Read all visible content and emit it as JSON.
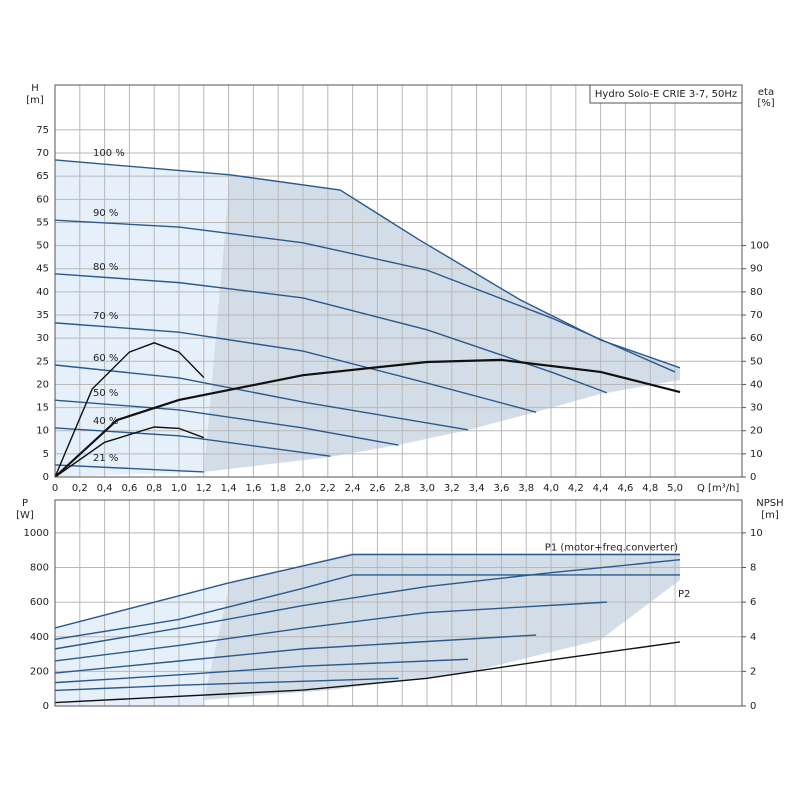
{
  "chart_data": [
    {
      "type": "line",
      "title": "Hydro Solo-E CRIE 3-7, 50Hz",
      "ylabel": "H",
      "yunit": "[m]",
      "y2label": "eta",
      "y2unit": "[%]",
      "xlabel": "Q [m³/h]",
      "xlim": [
        0,
        5.54
      ],
      "ylim": [
        0,
        84.7
      ],
      "y2lim": [
        0,
        169.4
      ],
      "xticks": [
        0,
        {
          "value": 0.2,
          "label": "0,2"
        },
        {
          "value": 0.4,
          "label": "0,4"
        },
        {
          "value": 0.6,
          "label": "0,6"
        },
        {
          "value": 0.8,
          "label": "0,8"
        },
        {
          "value": 1.0,
          "label": "1,0"
        },
        {
          "value": 1.2,
          "label": "1,2"
        },
        {
          "value": 1.4,
          "label": "1,4"
        },
        {
          "value": 1.6,
          "label": "1,6"
        },
        {
          "value": 1.8,
          "label": "1,8"
        },
        {
          "value": 2.0,
          "label": "2,0"
        },
        {
          "value": 2.2,
          "label": "2,2"
        },
        {
          "value": 2.4,
          "label": "2,4"
        },
        {
          "value": 2.6,
          "label": "2,6"
        },
        {
          "value": 2.8,
          "label": "2,8"
        },
        {
          "value": 3.0,
          "label": "3,0"
        },
        {
          "value": 3.2,
          "label": "3,2"
        },
        {
          "value": 3.4,
          "label": "3,4"
        },
        {
          "value": 3.6,
          "label": "3,6"
        },
        {
          "value": 3.8,
          "label": "3,8"
        },
        {
          "value": 4.0,
          "label": "4,0"
        },
        {
          "value": 4.2,
          "label": "4,2"
        },
        {
          "value": 4.4,
          "label": "4,4"
        },
        {
          "value": 4.6,
          "label": "4,6"
        },
        {
          "value": 4.8,
          "label": "4,8"
        },
        {
          "value": 5.0,
          "label": "5,0"
        }
      ],
      "yticks": [
        0,
        5,
        10,
        15,
        20,
        25,
        30,
        35,
        40,
        45,
        50,
        55,
        60,
        65,
        70,
        75
      ],
      "y2ticks": [
        0,
        10,
        20,
        30,
        40,
        50,
        60,
        70,
        80,
        90,
        100
      ],
      "grid": true,
      "series": [
        {
          "name": "100 %",
          "color": "#2a5a8c",
          "x": [
            0,
            1.41,
            2.3,
            2.94,
            3.75,
            4.4,
            5.04
          ],
          "values": [
            68.5,
            65.3,
            62,
            51.2,
            38.3,
            29.6,
            23.6
          ]
        },
        {
          "name": "90 %",
          "color": "#2a5a8c",
          "x": [
            0,
            1,
            2,
            3,
            4,
            5.0
          ],
          "values": [
            55.5,
            54,
            50.6,
            44.7,
            34.4,
            22.7
          ]
        },
        {
          "name": "80 %",
          "color": "#2a5a8c",
          "x": [
            0,
            1,
            2,
            3,
            4,
            4.45
          ],
          "values": [
            43.9,
            42,
            38.7,
            31.8,
            22.7,
            18.2
          ]
        },
        {
          "name": "70 %",
          "color": "#2a5a8c",
          "x": [
            0,
            1,
            2,
            3,
            3.88
          ],
          "values": [
            33.3,
            31.3,
            27.2,
            20.3,
            14
          ]
        },
        {
          "name": "60 %",
          "color": "#2a5a8c",
          "x": [
            0,
            1,
            2,
            3.33
          ],
          "values": [
            24.2,
            21.4,
            16.2,
            10.2
          ]
        },
        {
          "name": "50 %",
          "color": "#2a5a8c",
          "x": [
            0,
            1,
            2,
            2.77
          ],
          "values": [
            16.6,
            14.5,
            10.6,
            6.9
          ]
        },
        {
          "name": "40 %",
          "color": "#2a5a8c",
          "x": [
            0,
            1,
            2.22
          ],
          "values": [
            10.6,
            8.9,
            4.5
          ]
        },
        {
          "name": "21 %",
          "color": "#2a5a8c",
          "x": [
            0,
            1.2
          ],
          "values": [
            2.6,
            1.1
          ]
        },
        {
          "color": "#111111",
          "axis": "y2",
          "x": [
            0,
            0.5,
            1,
            2,
            3,
            3.6,
            4.4,
            5.04
          ],
          "values": [
            0,
            24.6,
            33.3,
            44,
            49.7,
            50.6,
            45.4,
            36.7
          ]
        },
        {
          "color": "#111111",
          "axis": "y2",
          "x": [
            0,
            0.3,
            0.6,
            0.8,
            1.0,
            1.2
          ],
          "values": [
            0,
            38,
            54,
            58,
            54,
            43
          ]
        },
        {
          "color": "#111111",
          "axis": "y2",
          "x": [
            0,
            0.4,
            0.8,
            1.0,
            1.2
          ],
          "values": [
            0,
            15,
            21.6,
            21,
            17
          ]
        }
      ]
    },
    {
      "type": "line",
      "ylabel": "P",
      "yunit": "[W]",
      "y2label": "NPSH",
      "y2unit": "[m]",
      "xlim": [
        0,
        5.54
      ],
      "ylim": [
        0,
        1190
      ],
      "y2lim": [
        0,
        11.9
      ],
      "yticks": [
        0,
        200,
        400,
        600,
        800,
        1000
      ],
      "y2ticks": [
        0,
        2,
        4,
        6,
        8,
        10
      ],
      "grid": true,
      "series": [
        {
          "name": "P1 (motor+freq.converter)",
          "color": "#2a5a8c",
          "x": [
            0,
            1.4,
            2.4,
            5.04
          ],
          "values": [
            451,
            711,
            875,
            875
          ]
        },
        {
          "name": "P2",
          "color": "#2a5a8c",
          "x": [
            0,
            1,
            2,
            2.4,
            5.04
          ],
          "values": [
            385,
            500,
            680,
            757,
            757
          ]
        },
        {
          "color": "#2a5a8c",
          "x": [
            0,
            1,
            2,
            3,
            4,
            5.04
          ],
          "values": [
            330,
            450,
            580,
            690,
            770,
            845
          ]
        },
        {
          "color": "#2a5a8c",
          "x": [
            0,
            1,
            2,
            3,
            4.45
          ],
          "values": [
            260,
            350,
            450,
            540,
            600
          ]
        },
        {
          "color": "#2a5a8c",
          "x": [
            0,
            1,
            2,
            3.88
          ],
          "values": [
            190,
            260,
            330,
            410
          ]
        },
        {
          "color": "#2a5a8c",
          "x": [
            0,
            1,
            2,
            3.33
          ],
          "values": [
            135,
            180,
            230,
            270
          ]
        },
        {
          "color": "#2a5a8c",
          "x": [
            0,
            1,
            2.77
          ],
          "values": [
            90,
            120,
            160
          ]
        },
        {
          "color": "#111111",
          "axis": "y2",
          "x": [
            0,
            2,
            3,
            4,
            5.04
          ],
          "values": [
            0.2,
            0.92,
            1.6,
            2.66,
            3.7
          ]
        }
      ]
    }
  ]
}
